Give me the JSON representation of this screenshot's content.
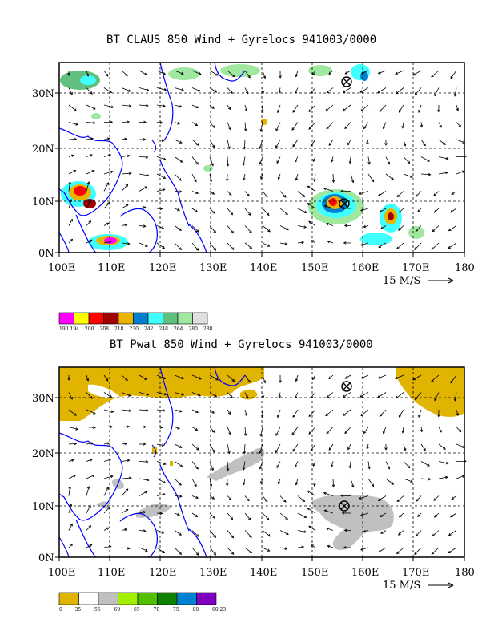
{
  "panels": [
    {
      "title": "BT CLAUS 850 Wind + Gyrelocs 941003/0000",
      "lat_labels": [
        "30N",
        "20N",
        "10N",
        "0N"
      ],
      "lon_labels": [
        "100E",
        "110E",
        "120E",
        "130E",
        "140E",
        "150E",
        "160E",
        "170E",
        "180"
      ],
      "scale_label": "15 M/S",
      "legend": {
        "labels": [
          "190",
          "194",
          "200",
          "208",
          "218",
          "230",
          "242",
          "248",
          "264",
          "280",
          "288"
        ],
        "colors": [
          "#ff00ff",
          "#ffff00",
          "#ff0000",
          "#a00000",
          "#e8b400",
          "#0080d0",
          "#40ffff",
          "#60c080",
          "#a0e8a0",
          "#e0e0e0"
        ]
      },
      "markers": [
        {
          "lon": 156.5,
          "lat": 32.0
        },
        {
          "lon": 156.5,
          "lat": 9.5
        }
      ]
    },
    {
      "title": "BT Pwat 850 Wind + Gyrelocs 941003/0000",
      "lat_labels": [
        "30N",
        "20N",
        "10N",
        "0N"
      ],
      "lon_labels": [
        "100E",
        "110E",
        "120E",
        "130E",
        "140E",
        "150E",
        "160E",
        "170E",
        "180"
      ],
      "scale_label": "15 M/S",
      "legend": {
        "labels": [
          "0",
          "35",
          "55",
          "60",
          "65",
          "70",
          "75",
          "80",
          "60.23"
        ],
        "colors": [
          "#e0b400",
          "#ffffff",
          "#c0c0c0",
          "#a0f000",
          "#50c000",
          "#108000",
          "#0080d0",
          "#8000c0"
        ]
      },
      "markers": [
        {
          "lon": 156.5,
          "lat": 32.0
        },
        {
          "lon": 156.5,
          "lat": 9.5
        }
      ]
    }
  ],
  "colors": {
    "coast": "#0000ff",
    "frame": "#000000",
    "pwat_fill": "#e0b400",
    "pwat_grey": "#c0c0c0"
  }
}
